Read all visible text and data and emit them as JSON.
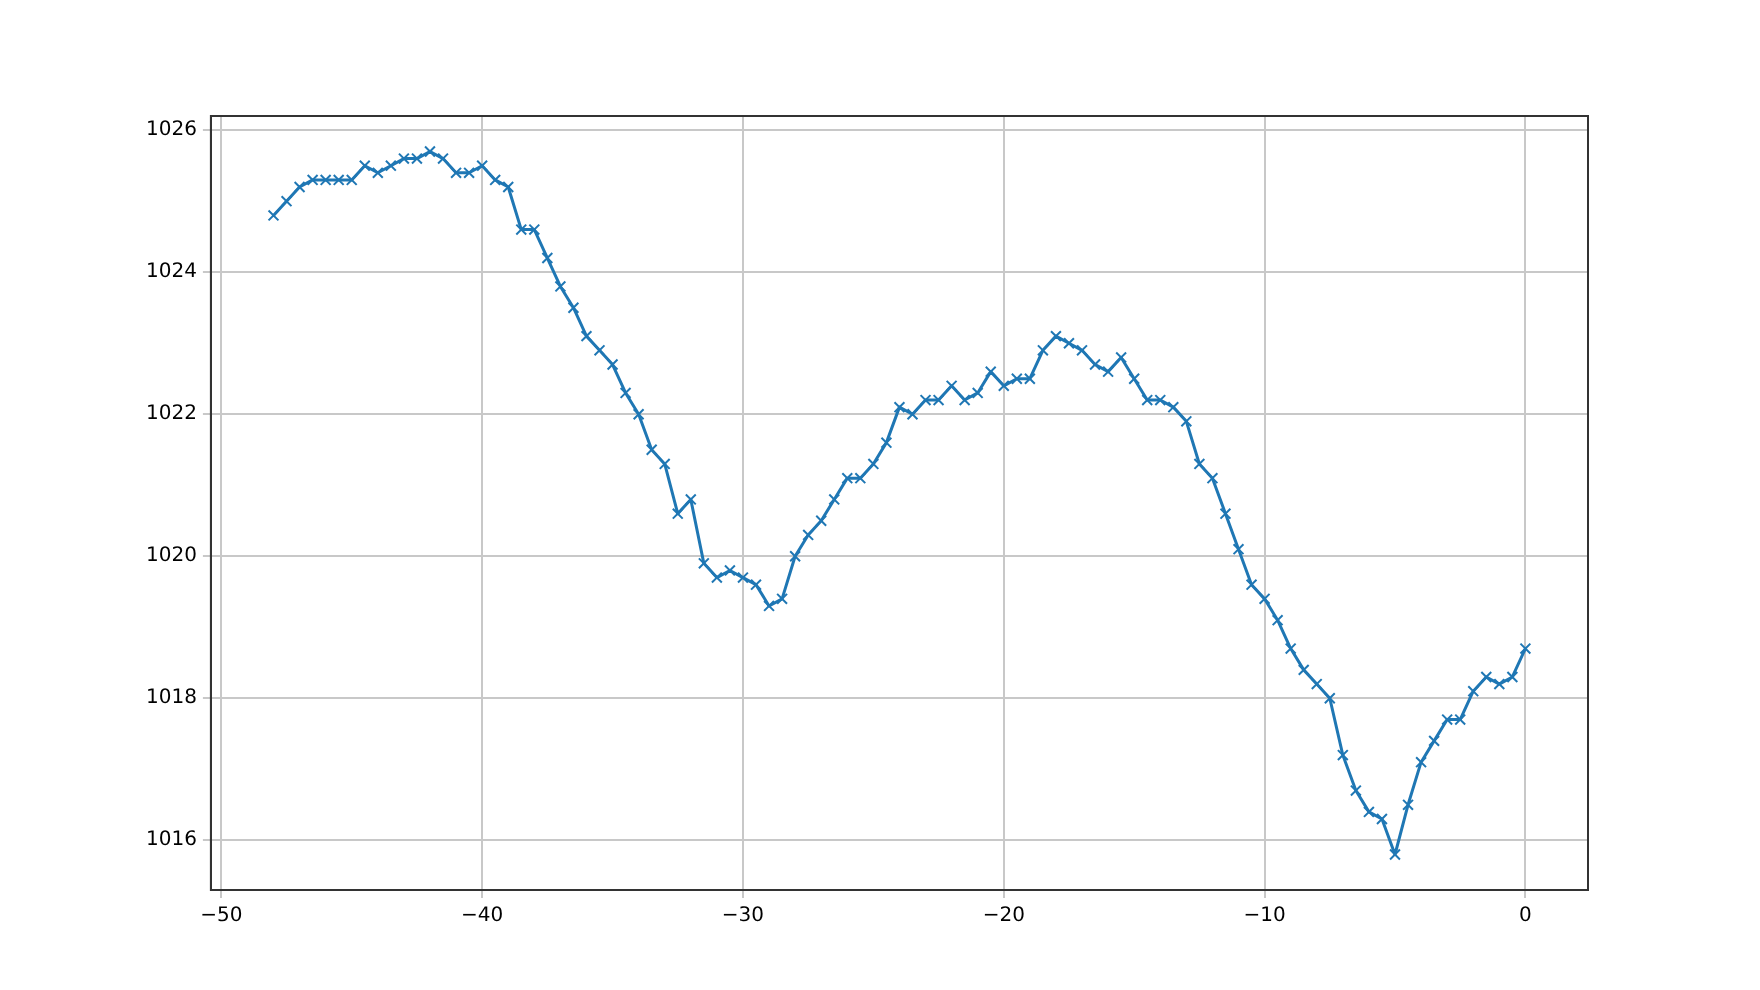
{
  "chart_data": {
    "type": "line",
    "x": [
      -48,
      -47.5,
      -47,
      -46.5,
      -46,
      -45.5,
      -45,
      -44.5,
      -44,
      -43.5,
      -43,
      -42.5,
      -42,
      -41.5,
      -41,
      -40.5,
      -40,
      -39.5,
      -39,
      -38.5,
      -38,
      -37.5,
      -37,
      -36.5,
      -36,
      -35.5,
      -35,
      -34.5,
      -34,
      -33.5,
      -33,
      -32.5,
      -32,
      -31.5,
      -31,
      -30.5,
      -30,
      -29.5,
      -29,
      -28.5,
      -28,
      -27.5,
      -27,
      -26.5,
      -26,
      -25.5,
      -25,
      -24.5,
      -24,
      -23.5,
      -23,
      -22.5,
      -22,
      -21.5,
      -21,
      -20.5,
      -20,
      -19.5,
      -19,
      -18.5,
      -18,
      -17.5,
      -17,
      -16.5,
      -16,
      -15.5,
      -15,
      -14.5,
      -14,
      -13.5,
      -13,
      -12.5,
      -12,
      -11.5,
      -11,
      -10.5,
      -10,
      -9.5,
      -9,
      -8.5,
      -8,
      -7.5,
      -7,
      -6.5,
      -6,
      -5.5,
      -5,
      -4.5,
      -4,
      -3.5,
      -3,
      -2.5,
      -2,
      -1.5,
      -1,
      -0.5,
      0
    ],
    "series": [
      {
        "color": "#1f77b4",
        "values": [
          1024.8,
          1025.0,
          1025.2,
          1025.3,
          1025.3,
          1025.3,
          1025.3,
          1025.5,
          1025.4,
          1025.5,
          1025.6,
          1025.6,
          1025.7,
          1025.6,
          1025.4,
          1025.4,
          1025.5,
          1025.3,
          1025.2,
          1024.6,
          1024.6,
          1024.2,
          1023.8,
          1023.5,
          1023.1,
          1022.9,
          1022.7,
          1022.3,
          1022.0,
          1021.5,
          1021.3,
          1020.6,
          1020.8,
          1019.9,
          1019.7,
          1019.8,
          1019.7,
          1019.6,
          1019.3,
          1019.4,
          1020.0,
          1020.3,
          1020.5,
          1020.8,
          1021.1,
          1021.1,
          1021.3,
          1021.6,
          1022.1,
          1022.0,
          1022.2,
          1022.2,
          1022.4,
          1022.2,
          1022.3,
          1022.6,
          1022.4,
          1022.5,
          1022.5,
          1022.9,
          1023.1,
          1023.0,
          1022.9,
          1022.7,
          1022.6,
          1022.8,
          1022.5,
          1022.2,
          1022.2,
          1022.1,
          1021.9,
          1021.3,
          1021.1,
          1020.6,
          1020.1,
          1019.6,
          1019.4,
          1019.1,
          1018.7,
          1018.4,
          1018.2,
          1018.0,
          1017.2,
          1016.7,
          1016.4,
          1016.3,
          1015.8,
          1016.5,
          1017.1,
          1017.4,
          1017.7,
          1017.7,
          1018.1,
          1018.3,
          1018.2,
          1018.3,
          1018.7
        ]
      }
    ],
    "xlim": [
      -50.4,
      2.4
    ],
    "xticks": [
      -50,
      -40,
      -30,
      -20,
      -10,
      0
    ],
    "ylim": [
      1015.3,
      1026.2
    ],
    "yticks": [
      1016,
      1018,
      1020,
      1022,
      1024,
      1026
    ],
    "grid": true,
    "marker": "cross",
    "line_style": "solid",
    "legend": false
  }
}
